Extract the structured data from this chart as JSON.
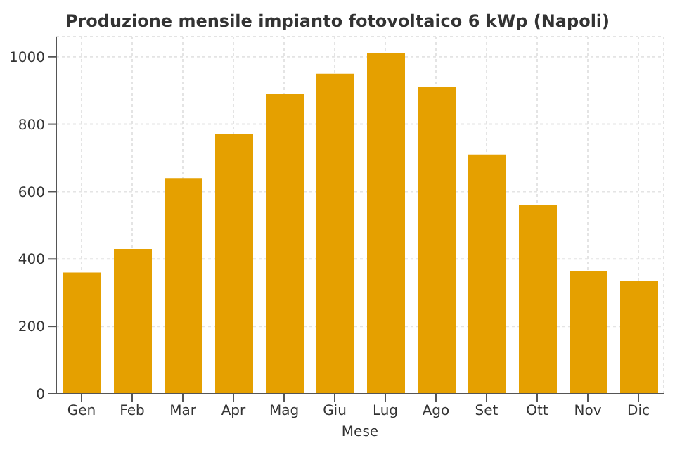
{
  "chart_data": {
    "type": "bar",
    "title": "Produzione mensile impianto fotovoltaico 6 kWp (Napoli)",
    "xlabel": "Mese",
    "categories": [
      "Gen",
      "Feb",
      "Mar",
      "Apr",
      "Mag",
      "Giu",
      "Lug",
      "Ago",
      "Set",
      "Ott",
      "Nov",
      "Dic"
    ],
    "values": [
      360,
      430,
      640,
      770,
      890,
      950,
      1010,
      910,
      710,
      560,
      365,
      335
    ],
    "color": "#e5a000",
    "ylim": [
      0,
      1060
    ],
    "yticks": [
      0,
      200,
      400,
      600,
      800,
      1000
    ],
    "grid": true
  }
}
